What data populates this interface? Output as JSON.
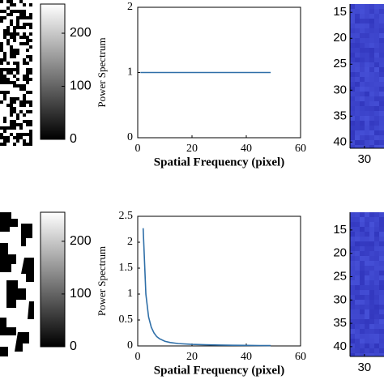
{
  "chart_data": [
    {
      "type": "colorbar",
      "ylim": [
        0,
        255
      ],
      "yticks": [
        0,
        100,
        200
      ]
    },
    {
      "type": "line",
      "xlabel": "Spatial Frequency (pixel)",
      "ylabel": "Power Spectrum",
      "x": [
        1,
        49
      ],
      "values": [
        1,
        1
      ],
      "color": "#2f6fa8",
      "xlim": [
        0,
        60
      ],
      "ylim": [
        0,
        2
      ],
      "xticks": [
        0,
        20,
        40,
        60
      ],
      "yticks": [
        0,
        1,
        2
      ]
    },
    {
      "type": "heatmap",
      "xlim": [
        27.2,
        33.8
      ],
      "ylim": [
        13.4,
        41.2
      ],
      "xticks": [
        30
      ],
      "yticks": [
        15,
        20,
        25,
        30,
        35,
        40
      ]
    },
    {
      "type": "colorbar",
      "ylim": [
        0,
        255
      ],
      "yticks": [
        0,
        100,
        200
      ]
    },
    {
      "type": "line",
      "xlabel": "Spatial Frequency (pixel)",
      "ylabel": "Power Spectrum",
      "x": [
        2,
        3,
        4,
        5,
        6,
        7,
        8,
        10,
        12,
        15,
        20,
        25,
        30,
        35,
        40,
        45,
        49
      ],
      "values": [
        2.27,
        1.0,
        0.56,
        0.36,
        0.25,
        0.18,
        0.14,
        0.09,
        0.065,
        0.045,
        0.03,
        0.022,
        0.017,
        0.013,
        0.01,
        0.008,
        0.007
      ],
      "color": "#2f6fa8",
      "xlim": [
        0,
        60
      ],
      "ylim": [
        0,
        2.5
      ],
      "xticks": [
        0,
        20,
        40,
        60
      ],
      "yticks": [
        0,
        0.5,
        1,
        1.5,
        2,
        2.5
      ]
    },
    {
      "type": "heatmap",
      "xlim": [
        27.2,
        33.8
      ],
      "ylim": [
        11.2,
        42.1
      ],
      "xticks": [
        30
      ],
      "yticks": [
        15,
        20,
        25,
        30,
        35,
        40
      ]
    }
  ]
}
